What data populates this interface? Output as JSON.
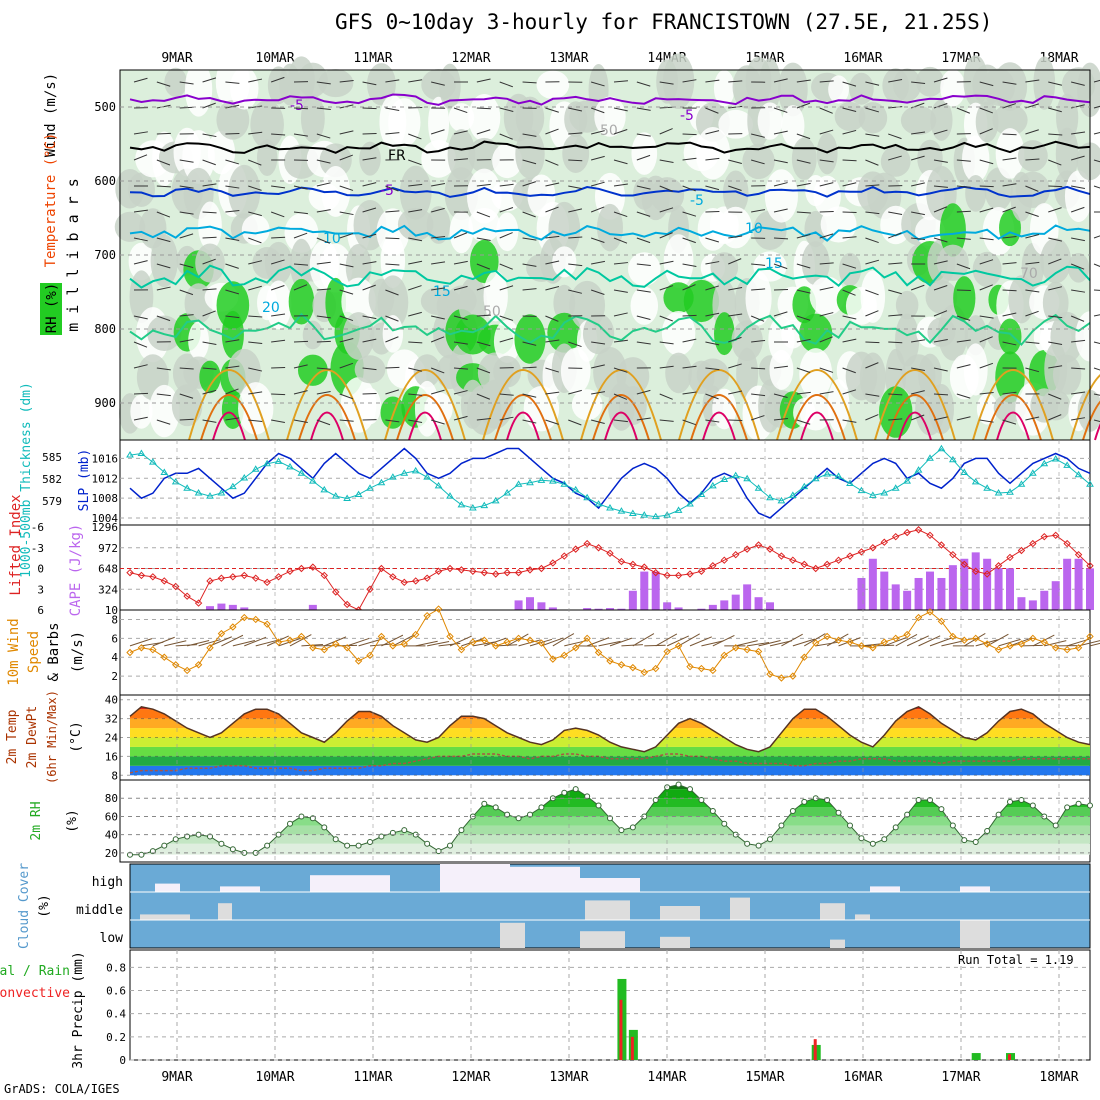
{
  "header": {
    "title": "GFS 0~10day 3-hourly for FRANCISTOWN (27.5E, 21.25S)",
    "credit": "GrADS: COLA/IGES"
  },
  "colors": {
    "rh_green": "#22cc22",
    "rh_light": "#dcefdc",
    "rh_gray": "#c8d2c8",
    "temp_purple": "#8800cc",
    "temp_blue": "#0033cc",
    "temp_cyan": "#00aadd",
    "temp_teal": "#00c8a0",
    "temp_orange": "#e0a020",
    "temp_red": "#dd0066",
    "slp_blue": "#0022cc",
    "thickness_cyan": "#11bbbb",
    "lifted_red": "#dd2222",
    "cape_purple": "#bb66ee",
    "wind_orange": "#e08800",
    "cloud_bg": "#6aaad6",
    "cloud_fill": "#dddddd",
    "precip_green": "#22bb22",
    "precip_red": "#ee2222"
  },
  "chart_data": [
    {
      "type": "heatmap",
      "panel": "upper-air cross-section",
      "ylabel": "m i l l i b a r s",
      "legend_labels": [
        "Wind (m/s)",
        "Temperature (°C)",
        "RH (%)"
      ],
      "yticks": [
        500,
        600,
        700,
        800,
        900
      ],
      "ylim": [
        450,
        950
      ],
      "contour_labels": [
        "-5",
        "-5",
        "FR",
        "-5",
        "-5",
        "10",
        "10",
        "15",
        "15",
        "20",
        "50",
        "50",
        "70"
      ],
      "x_dates": [
        "9MAR",
        "10MAR",
        "11MAR",
        "12MAR",
        "13MAR",
        "14MAR",
        "15MAR",
        "16MAR",
        "17MAR",
        "18MAR"
      ]
    },
    {
      "type": "line",
      "panel": "slp-thickness",
      "left_label": "1000-500mb Thickness (dm)",
      "right_label": "SLP (mb)",
      "left_ticks": [
        "585",
        "582",
        "579"
      ],
      "right_ticks": [
        "1016",
        "1012",
        "1008",
        "1004"
      ],
      "series": [
        {
          "name": "SLP (mb)",
          "values": [
            1010,
            1008,
            1009,
            1012,
            1013,
            1013,
            1014,
            1012,
            1010,
            1008,
            1009,
            1012,
            1015,
            1017,
            1016,
            1014,
            1012,
            1015,
            1017,
            1015,
            1013,
            1012,
            1014,
            1016,
            1018,
            1016,
            1013,
            1012,
            1013,
            1015,
            1016,
            1016,
            1017,
            1018,
            1018,
            1016,
            1014,
            1012,
            1011,
            1009,
            1008,
            1006,
            1009,
            1012,
            1014,
            1015,
            1014,
            1012,
            1009,
            1007,
            1009,
            1012,
            1013,
            1012,
            1008,
            1005,
            1004,
            1006,
            1008,
            1010,
            1012,
            1014,
            1012,
            1011,
            1013,
            1015,
            1016,
            1015,
            1012,
            1013,
            1011,
            1010,
            1012,
            1015,
            1016,
            1016,
            1013,
            1011,
            1013,
            1015,
            1016,
            1017,
            1016,
            1014,
            1013
          ]
        },
        {
          "name": "1000-500mb Thickness (dm)",
          "values": [
            585.6,
            585.8,
            584.7,
            583.4,
            582.2,
            581.4,
            580.8,
            580.4,
            580.8,
            581.6,
            582.7,
            583.8,
            584.5,
            584.8,
            584.1,
            583.3,
            582.3,
            581.2,
            580.4,
            580.1,
            580.6,
            581.4,
            582.1,
            582.8,
            583.3,
            583.6,
            582.8,
            581.7,
            580.4,
            579.3,
            578.9,
            579.2,
            579.8,
            580.8,
            581.9,
            582.1,
            582.4,
            582.3,
            581.9,
            581.2,
            580.2,
            579.4,
            578.9,
            578.5,
            578.2,
            578.0,
            577.8,
            578.0,
            578.6,
            579.4,
            580.6,
            581.7,
            582.5,
            583.0,
            582.6,
            581.4,
            580.2,
            579.8,
            580.5,
            581.6,
            582.6,
            583.2,
            582.9,
            582.0,
            581.1,
            580.5,
            580.8,
            581.4,
            582.3,
            583.7,
            585.2,
            586.4,
            585.0,
            583.4,
            582.2,
            581.4,
            580.8,
            580.9,
            581.9,
            583.3,
            584.5,
            585.1,
            584.3,
            583.1,
            581.9
          ]
        }
      ]
    },
    {
      "type": "bar",
      "panel": "cape-lifted-index",
      "left_label": "Lifted Index",
      "right_label": "CAPE (J/kg)",
      "li_ticks": [
        "-6",
        "-3",
        "0",
        "3",
        "6"
      ],
      "cape_ticks": [
        "1296",
        "972",
        "648",
        "324",
        "10"
      ],
      "series": [
        {
          "name": "CAPE (J/kg)",
          "values": [
            0,
            0,
            0,
            0,
            0,
            0,
            0,
            60,
            100,
            80,
            40,
            0,
            0,
            0,
            0,
            0,
            80,
            0,
            0,
            0,
            0,
            0,
            0,
            0,
            0,
            0,
            0,
            0,
            0,
            0,
            0,
            0,
            0,
            0,
            150,
            200,
            120,
            40,
            0,
            0,
            30,
            20,
            30,
            20,
            300,
            600,
            600,
            120,
            40,
            0,
            20,
            80,
            150,
            240,
            400,
            200,
            120,
            0,
            0,
            0,
            0,
            0,
            0,
            0,
            500,
            800,
            600,
            400,
            300,
            500,
            600,
            500,
            700,
            800,
            900,
            800,
            650,
            650,
            200,
            150,
            300,
            450,
            800,
            800,
            650
          ]
        },
        {
          "name": "Lifted Index",
          "values": [
            0.6,
            1.0,
            1.2,
            1.8,
            2.6,
            4.0,
            5.0,
            1.8,
            1.4,
            1.2,
            1.0,
            1.4,
            2.0,
            1.2,
            0.4,
            0.0,
            -0.2,
            1.0,
            3.4,
            5.2,
            6.0,
            3.0,
            0.0,
            1.2,
            2.0,
            1.8,
            1.4,
            0.4,
            0.0,
            0.2,
            0.4,
            0.6,
            0.8,
            0.6,
            0.6,
            0.2,
            0.0,
            -0.8,
            -1.8,
            -2.8,
            -3.6,
            -3.0,
            -2.2,
            -1.0,
            -0.6,
            -0.2,
            0.6,
            1.0,
            1.0,
            0.8,
            0.4,
            -0.4,
            -1.2,
            -2.0,
            -2.8,
            -3.4,
            -2.8,
            -1.8,
            -1.2,
            -0.6,
            0.0,
            -0.6,
            -1.2,
            -1.8,
            -2.4,
            -3.0,
            -3.8,
            -4.6,
            -5.2,
            -5.6,
            -4.8,
            -3.4,
            -2.0,
            -0.6,
            0.4,
            0.8,
            -0.4,
            -1.6,
            -2.6,
            -3.6,
            -4.6,
            -4.8,
            -3.6,
            -2.0,
            -0.4
          ]
        }
      ]
    },
    {
      "type": "line",
      "panel": "10m wind",
      "ylabel": "10m Wind Speed & Barbs",
      "unit": "(m/s)",
      "yticks": [
        "8",
        "6",
        "4",
        "2"
      ],
      "ylim": [
        0,
        9
      ],
      "series": [
        {
          "name": "10m Wind Speed",
          "values": [
            4.5,
            5.0,
            4.8,
            4.0,
            3.2,
            2.6,
            3.2,
            5.0,
            6.5,
            7.2,
            8.2,
            8.0,
            7.5,
            5.6,
            5.8,
            6.2,
            5.0,
            4.8,
            5.4,
            5.0,
            3.6,
            4.2,
            6.2,
            5.2,
            5.4,
            6.4,
            8.4,
            9.1,
            6.2,
            4.8,
            5.6,
            5.8,
            5.2,
            5.6,
            6.0,
            5.8,
            5.5,
            3.8,
            4.2,
            5.0,
            6.0,
            4.5,
            3.6,
            3.2,
            2.9,
            2.4,
            2.8,
            4.6,
            5.2,
            3.0,
            2.8,
            2.6,
            4.2,
            5.0,
            4.8,
            4.6,
            2.2,
            1.8,
            2.0,
            4.0,
            5.5,
            6.2,
            5.8,
            5.6,
            5.2,
            5.0,
            5.6,
            6.0,
            6.4,
            8.2,
            8.8,
            7.8,
            6.2,
            5.8,
            6.0,
            5.4,
            4.8,
            5.2,
            5.4,
            6.0,
            5.6,
            5.0,
            4.8,
            5.0,
            6.2
          ]
        }
      ]
    },
    {
      "type": "area",
      "panel": "2m temperature",
      "ylabel": "2m Temp 2m DewPt (6hr Min/Max)",
      "unit": "(°C)",
      "yticks": [
        "40",
        "32",
        "24",
        "16",
        "8"
      ],
      "ylim": [
        6,
        42
      ],
      "series": [
        {
          "name": "2m Temp",
          "values": [
            33,
            37,
            36,
            34,
            31,
            28,
            26,
            24,
            26,
            30,
            34,
            36,
            36,
            34,
            30,
            26,
            24,
            22,
            26,
            31,
            35,
            35,
            33,
            29,
            26,
            23,
            22,
            24,
            29,
            33,
            33,
            32,
            29,
            26,
            24,
            22,
            21,
            23,
            27,
            28,
            27,
            25,
            22,
            20,
            19,
            18,
            20,
            25,
            30,
            32,
            30,
            27,
            24,
            21,
            19,
            18,
            20,
            26,
            32,
            36,
            36,
            33,
            29,
            25,
            22,
            20,
            25,
            31,
            35,
            37,
            34,
            30,
            27,
            24,
            23,
            26,
            31,
            35,
            36,
            34,
            30,
            27,
            24,
            22,
            21
          ]
        },
        {
          "name": "2m DewPt",
          "values": [
            9,
            10,
            10,
            10,
            10,
            11,
            11,
            11,
            12,
            12,
            12,
            11,
            11,
            11,
            11,
            10,
            10,
            11,
            11,
            11,
            11,
            12,
            12,
            13,
            13,
            14,
            15,
            16,
            16,
            16,
            17,
            17,
            17,
            16,
            16,
            15,
            16,
            16,
            17,
            17,
            16,
            16,
            15,
            15,
            15,
            15,
            16,
            17,
            17,
            16,
            16,
            15,
            14,
            14,
            13,
            13,
            13,
            13,
            12,
            12,
            13,
            13,
            14,
            14,
            15,
            15,
            15,
            14,
            14,
            14,
            14,
            13,
            14,
            14,
            14,
            14,
            14,
            14,
            15,
            15,
            15,
            15,
            15,
            15,
            15
          ]
        }
      ]
    },
    {
      "type": "area",
      "panel": "2m relative humidity",
      "ylabel": "2m RH",
      "unit": "(%)",
      "yticks": [
        "80",
        "60",
        "40",
        "20"
      ],
      "ylim": [
        10,
        100
      ],
      "series": [
        {
          "name": "2m RH",
          "values": [
            18,
            18,
            22,
            28,
            35,
            38,
            40,
            38,
            30,
            24,
            20,
            20,
            28,
            40,
            52,
            60,
            58,
            48,
            35,
            28,
            28,
            32,
            38,
            42,
            45,
            40,
            30,
            22,
            28,
            45,
            60,
            74,
            70,
            62,
            58,
            62,
            70,
            80,
            86,
            90,
            82,
            72,
            58,
            45,
            48,
            60,
            78,
            92,
            95,
            90,
            78,
            66,
            52,
            40,
            30,
            28,
            35,
            50,
            66,
            76,
            80,
            78,
            64,
            50,
            36,
            30,
            35,
            48,
            62,
            78,
            78,
            68,
            50,
            34,
            32,
            44,
            62,
            76,
            78,
            72,
            60,
            50,
            70,
            74,
            72
          ]
        }
      ]
    },
    {
      "type": "heatmap",
      "panel": "cloud cover",
      "ylabel": "Cloud Cover",
      "unit": "(%)",
      "rows": [
        "high",
        "middle",
        "low"
      ]
    },
    {
      "type": "bar",
      "panel": "3hr precip",
      "ylabel": "3hr Precip (mm)",
      "legend_labels": [
        "Total / Rain",
        "Convective"
      ],
      "run_total": "Run Total = 1.19",
      "yticks": [
        "0.8",
        "0.6",
        "0.4",
        "0.2",
        "0"
      ],
      "ylim": [
        0,
        0.95
      ],
      "series": [
        {
          "name": "Total / Rain",
          "values": [
            0.0,
            0.7,
            0.26,
            0.13,
            0.06,
            0.06
          ]
        },
        {
          "name": "Convective",
          "values": [
            0.0,
            0.52,
            0.2,
            0.18,
            0.0,
            0.05
          ]
        }
      ],
      "bar_steps": [
        0,
        43,
        44,
        60,
        74,
        77
      ]
    }
  ]
}
